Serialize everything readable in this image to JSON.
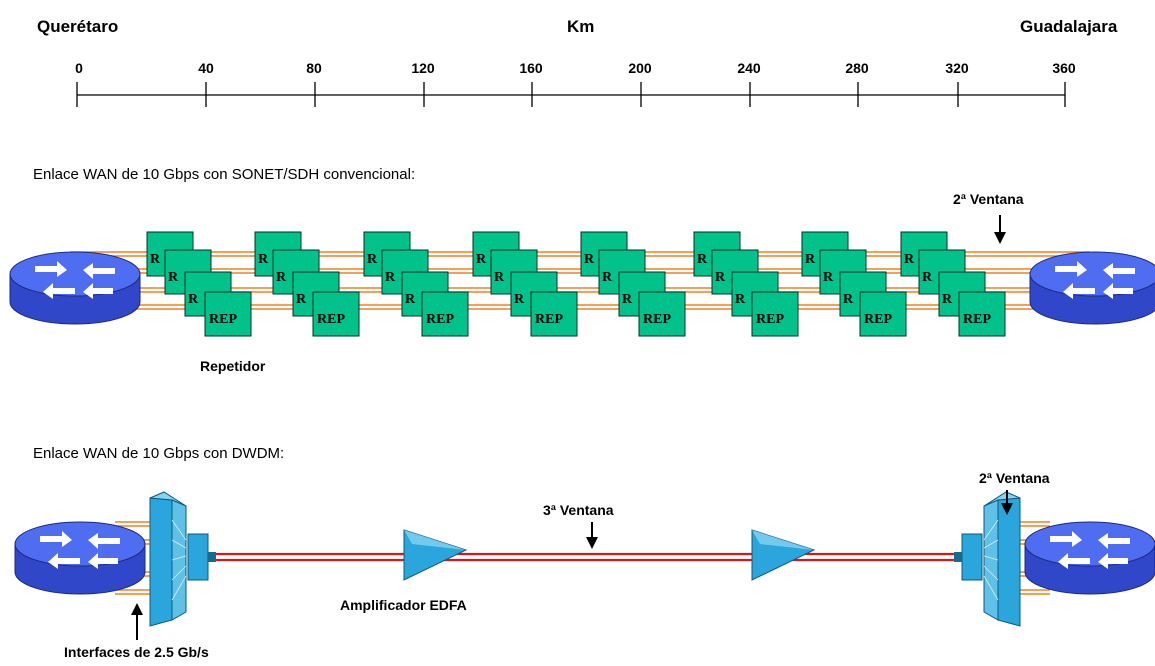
{
  "header": {
    "origin": "Querétaro",
    "unit": "Km",
    "destination": "Guadalajara",
    "ticks": [
      "0",
      "40",
      "80",
      "120",
      "160",
      "200",
      "240",
      "280",
      "320",
      "360"
    ]
  },
  "sonet": {
    "title": "Enlace WAN de 10 Gbps con SONET/SDH convencional:",
    "window_label": "2ª Ventana",
    "repeater_caption": "Repetidor",
    "repeater_box_text": "REP",
    "repeater_partial_text": "R"
  },
  "dwdm": {
    "title": "Enlace WAN de 10 Gbps con DWDM:",
    "window3_label": "3ª Ventana",
    "window2_label": "2ª Ventana",
    "amplifier_caption": "Amplificador EDFA",
    "interfaces_caption": "Interfaces de 2.5 Gb/s"
  },
  "colors": {
    "router_top": "#4f6df0",
    "router_side": "#2f47c8",
    "repeater_fill": "#00c28a",
    "fiber_orange": "#f08020",
    "fiber_red": "#d81818",
    "device_cyan": "#2aa6dc"
  }
}
